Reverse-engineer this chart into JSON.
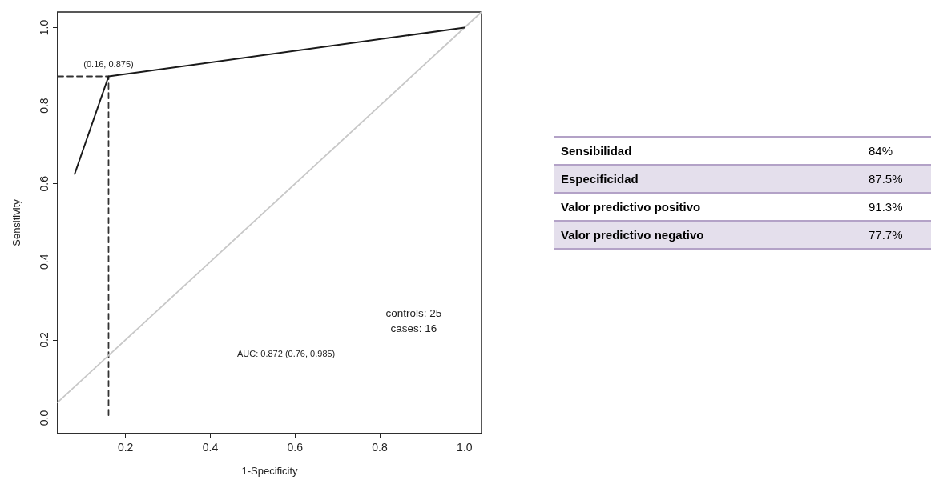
{
  "chart_data": [
    {
      "type": "line",
      "xlabel": "1-Specificity",
      "ylabel": "Sensitivity",
      "xlim": [
        0.04,
        1.04
      ],
      "ylim": [
        -0.04,
        1.04
      ],
      "xticks": [
        0.2,
        0.4,
        0.6,
        0.8,
        {
          "value": 1,
          "label": "1.0"
        }
      ],
      "yticks": [
        {
          "value": 0,
          "label": "0.0"
        },
        0.2,
        0.4,
        0.6,
        0.8,
        {
          "value": 1,
          "label": "1.0"
        }
      ],
      "marker": "none",
      "series": [
        {
          "color": "#1a1a1a",
          "x": [
            0.08,
            0.16,
            1.0
          ],
          "values": [
            0.625,
            0.875,
            1.0
          ]
        },
        {
          "color": "#c8c8c8",
          "x": [
            0.04,
            1.04
          ],
          "values": [
            0.04,
            1.04
          ]
        },
        {
          "color": "#333333",
          "line_style": "dashed",
          "x": [
            0.04,
            0.16,
            0.16
          ],
          "values": [
            0.875,
            0.875,
            0
          ]
        }
      ],
      "annotations": [
        {
          "text": "(0.16, 0.875)",
          "x": 0.16,
          "y": 0.875
        },
        "AUC: 0.872 (0.76, 0.985)",
        "controls: 25",
        "cases: 16"
      ]
    },
    {
      "type": "other",
      "categories": [
        "Sensibilidad",
        "Especificidad",
        "Valor predictivo positivo",
        "Valor predictivo negativo"
      ],
      "value_labels": [
        "84%",
        "87.5%",
        "91.3%",
        "77.7%"
      ]
    }
  ]
}
